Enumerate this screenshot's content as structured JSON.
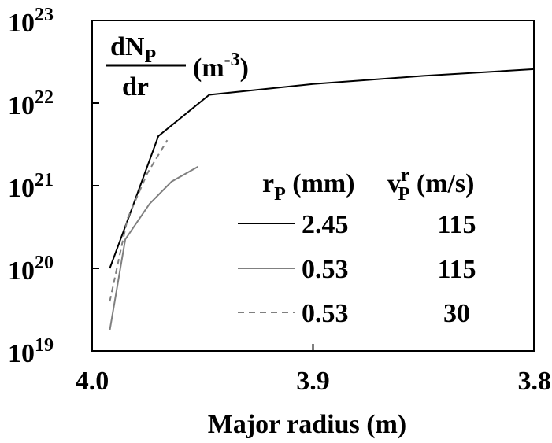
{
  "chart_data": {
    "type": "line",
    "title": "",
    "ylabel_parts": {
      "numerator": "dN",
      "numerator_sub": "P",
      "denominator": "dr",
      "unit_pre": "(m",
      "unit_sup": "-3",
      "unit_post": ")"
    },
    "xlabel": "Major radius (m)",
    "xlim": [
      4.0,
      3.8
    ],
    "x_reversed": true,
    "yscale": "log",
    "ylim_exp": [
      19,
      23
    ],
    "xticks": [
      {
        "value": 4.0,
        "label": "4.0"
      },
      {
        "value": 3.9,
        "label": "3.9"
      },
      {
        "value": 3.8,
        "label": "3.8"
      }
    ],
    "yticks": [
      {
        "exp": 19,
        "base": "10",
        "sup": "19"
      },
      {
        "exp": 20,
        "base": "10",
        "sup": "20"
      },
      {
        "exp": 21,
        "base": "10",
        "sup": "21"
      },
      {
        "exp": 22,
        "base": "10",
        "sup": "22"
      },
      {
        "exp": 23,
        "base": "10",
        "sup": "23"
      }
    ],
    "legend": {
      "position": "center-right",
      "header": {
        "r": "r",
        "r_sub": "P",
        "r_unit": " (mm)",
        "v": "v",
        "v_sup": "r",
        "v_sub": "P",
        "v_unit": " (m/s)"
      },
      "rows": [
        {
          "rp": "2.45",
          "vp": "115",
          "style": "solid",
          "color": "#000000"
        },
        {
          "rp": "0.53",
          "vp": "115",
          "style": "solid",
          "color": "#808080"
        },
        {
          "rp": "0.53",
          "vp": "30",
          "style": "dashed",
          "color": "#808080"
        }
      ]
    },
    "series": [
      {
        "color": "#000000",
        "dash": "",
        "points": [
          [
            3.992,
            20.0
          ],
          [
            3.983,
            20.65
          ],
          [
            3.97,
            21.6
          ],
          [
            3.947,
            22.1
          ],
          [
            3.9,
            22.23
          ],
          [
            3.85,
            22.33
          ],
          [
            3.8,
            22.41
          ]
        ]
      },
      {
        "color": "#808080",
        "dash": "",
        "points": [
          [
            3.992,
            19.25
          ],
          [
            3.985,
            20.35
          ],
          [
            3.974,
            20.78
          ],
          [
            3.964,
            21.05
          ],
          [
            3.952,
            21.23
          ]
        ]
      },
      {
        "color": "#808080",
        "dash": "7,5",
        "points": [
          [
            3.992,
            19.6
          ],
          [
            3.984,
            20.6
          ],
          [
            3.975,
            21.15
          ],
          [
            3.966,
            21.55
          ]
        ]
      }
    ]
  }
}
